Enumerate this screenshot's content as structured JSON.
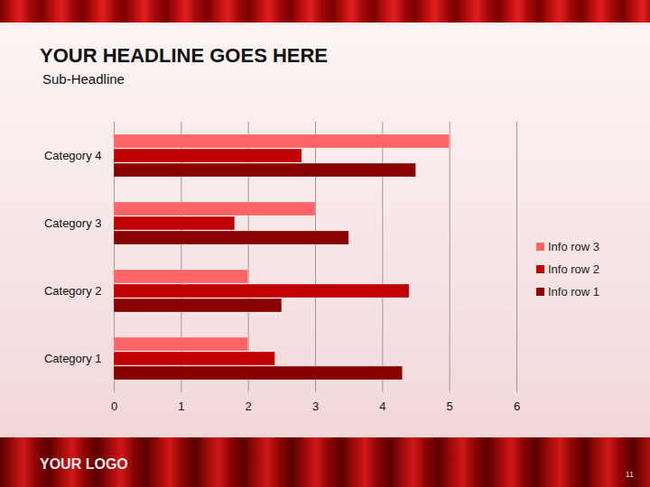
{
  "chart_data": {
    "type": "bar",
    "orientation": "horizontal",
    "title": "YOUR HEADLINE GOES HERE",
    "subtitle": "Sub-Headline",
    "categories": [
      "Category 1",
      "Category 2",
      "Category 3",
      "Category 4"
    ],
    "series": [
      {
        "name": "Info row 3",
        "color": "#ff6466",
        "values": [
          2,
          2,
          3,
          5
        ]
      },
      {
        "name": "Info row 2",
        "color": "#c00000",
        "values": [
          2.4,
          4.4,
          1.8,
          2.8
        ]
      },
      {
        "name": "Info row 1",
        "color": "#880000",
        "values": [
          4.3,
          2.5,
          3.5,
          4.5
        ]
      }
    ],
    "xlim": [
      0,
      6
    ],
    "xticks": [
      0,
      1,
      2,
      3,
      4,
      5,
      6
    ],
    "grid": true,
    "legend": "right",
    "data_labels": false
  },
  "footer": {
    "logo": "YOUR LOGO",
    "page_number": "11"
  }
}
